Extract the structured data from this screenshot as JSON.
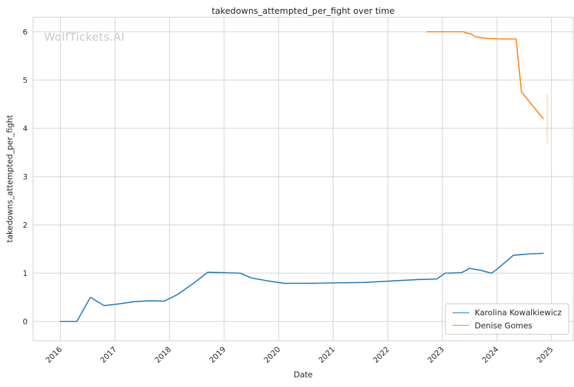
{
  "watermark": {
    "text": "WolfTickets.AI"
  },
  "chart_data": {
    "type": "line",
    "title": "takedowns_attempted_per_fight over time",
    "xlabel": "Date",
    "ylabel": "takedowns_attempted_per_fight",
    "xlim": [
      2015.5,
      2025.4
    ],
    "ylim": [
      -0.4,
      6.3
    ],
    "x_ticks": [
      2016,
      2017,
      2018,
      2019,
      2020,
      2021,
      2022,
      2023,
      2024,
      2025
    ],
    "y_ticks": [
      0,
      1,
      2,
      3,
      4,
      5,
      6
    ],
    "grid": true,
    "grid_color": "#d2d2d2",
    "axes_edge_color": "#cccccc",
    "legend_position": "lower right",
    "series": [
      {
        "name": "Karolina Kowalkiewicz",
        "color": "#1f77b4",
        "points": [
          [
            2016.0,
            0.0
          ],
          [
            2016.3,
            0.0
          ],
          [
            2016.55,
            0.5
          ],
          [
            2016.8,
            0.33
          ],
          [
            2017.05,
            0.36
          ],
          [
            2017.35,
            0.41
          ],
          [
            2017.65,
            0.43
          ],
          [
            2017.9,
            0.42
          ],
          [
            2018.15,
            0.56
          ],
          [
            2018.45,
            0.8
          ],
          [
            2018.7,
            1.02
          ],
          [
            2019.0,
            1.01
          ],
          [
            2019.3,
            1.0
          ],
          [
            2019.5,
            0.9
          ],
          [
            2019.8,
            0.84
          ],
          [
            2020.1,
            0.79
          ],
          [
            2020.6,
            0.79
          ],
          [
            2021.1,
            0.8
          ],
          [
            2021.6,
            0.81
          ],
          [
            2022.1,
            0.84
          ],
          [
            2022.6,
            0.87
          ],
          [
            2022.9,
            0.88
          ],
          [
            2023.05,
            1.0
          ],
          [
            2023.35,
            1.01
          ],
          [
            2023.5,
            1.1
          ],
          [
            2023.7,
            1.06
          ],
          [
            2023.9,
            1.0
          ],
          [
            2024.0,
            1.08
          ],
          [
            2024.3,
            1.37
          ],
          [
            2024.6,
            1.4
          ],
          [
            2024.85,
            1.41
          ]
        ]
      },
      {
        "name": "Denise Gomes",
        "color": "#ff7f0e",
        "points": [
          [
            2022.72,
            6.0
          ],
          [
            2023.0,
            6.0
          ],
          [
            2023.25,
            6.0
          ],
          [
            2023.38,
            6.0
          ],
          [
            2023.45,
            5.97
          ],
          [
            2023.52,
            5.96
          ],
          [
            2023.6,
            5.9
          ],
          [
            2023.7,
            5.88
          ],
          [
            2023.85,
            5.86
          ],
          [
            2024.1,
            5.85
          ],
          [
            2024.35,
            5.85
          ],
          [
            2024.45,
            4.75
          ],
          [
            2024.85,
            4.2
          ]
        ]
      }
    ],
    "error_bar": {
      "x": 2024.92,
      "y_min": 3.68,
      "y_max": 4.72,
      "color": "#ff7f0e",
      "opacity": 0.4
    }
  }
}
